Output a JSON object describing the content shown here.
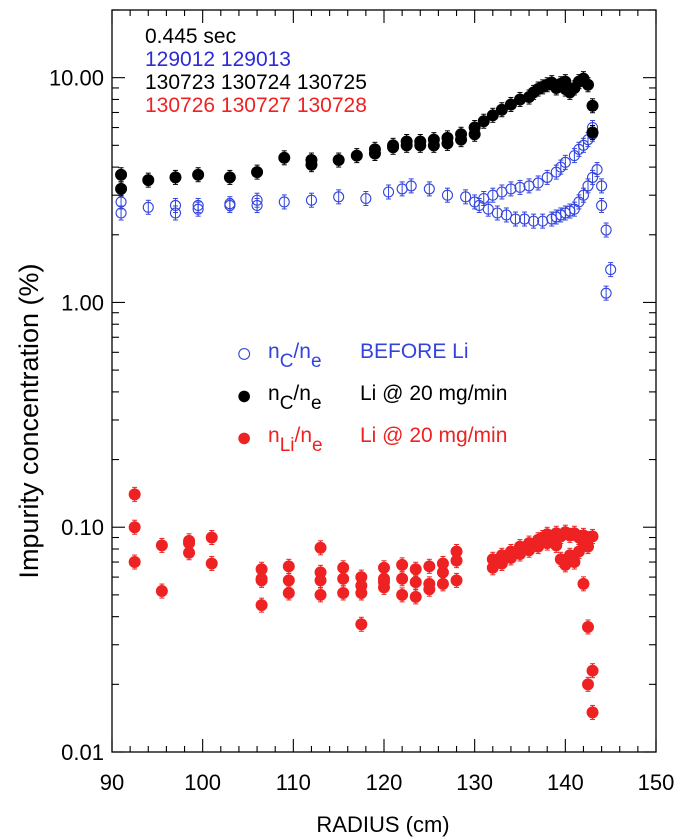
{
  "chart_data": {
    "type": "scatter",
    "xlabel": "RADIUS (cm)",
    "ylabel": "Impurity concentration (%)",
    "xlim": [
      90,
      150
    ],
    "ylim": [
      0.01,
      20
    ],
    "y_scale": "log",
    "x_ticks": [
      90,
      100,
      110,
      120,
      130,
      140,
      150
    ],
    "y_ticks": [
      {
        "value": 0.01,
        "label": "0.01"
      },
      {
        "value": 0.1,
        "label": "0.10"
      },
      {
        "value": 1,
        "label": "1.00"
      },
      {
        "value": 10,
        "label": "10.00"
      }
    ],
    "annotations": [
      {
        "text": "0.445 sec",
        "color": "#000000"
      },
      {
        "text": "129012 129013",
        "color": "#2b2bd9"
      },
      {
        "text": "130723 130724 130725",
        "color": "#000000"
      },
      {
        "text": "130726 130727 130728",
        "color": "#ee2222"
      }
    ],
    "legend": {
      "placement": "center-left",
      "entries": [
        {
          "symbol": "○",
          "main": "n",
          "sub1": "C",
          "slash": "/n",
          "sub2": "e",
          "label": "BEFORE Li",
          "color": "#3344dd",
          "label_color": "#3344dd"
        },
        {
          "symbol": "●",
          "main": "n",
          "sub1": "C",
          "slash": "/n",
          "sub2": "e",
          "label": "Li @ 20 mg/min",
          "color": "#000000",
          "label_color": "#000000"
        },
        {
          "symbol": "●",
          "main": "n",
          "sub1": "Li",
          "slash": "/n",
          "sub2": "e",
          "label": "Li @ 20 mg/min",
          "color": "#ee2222",
          "label_color": "#ee2222"
        }
      ]
    },
    "series": [
      {
        "marker": "open-circle",
        "color": "#3344dd",
        "x": [
          91,
          91,
          94,
          97,
          97,
          99.5,
          99.5,
          103,
          103,
          106,
          106,
          109,
          112,
          115,
          118,
          120.5,
          122,
          123,
          125,
          127,
          129,
          130.5,
          131.5,
          132.5,
          133.5,
          134.5,
          135.5,
          136.5,
          137.5,
          138.5,
          139,
          139.5,
          140,
          140.5,
          141,
          141.5,
          142,
          142.5,
          143,
          143.5,
          143,
          144,
          144,
          144.5,
          145,
          144.5
        ],
        "y": [
          2.8,
          2.5,
          2.65,
          2.7,
          2.5,
          2.7,
          2.6,
          2.75,
          2.7,
          2.85,
          2.7,
          2.8,
          2.85,
          2.95,
          2.9,
          3.1,
          3.2,
          3.3,
          3.2,
          3.0,
          2.95,
          2.7,
          2.6,
          2.5,
          2.45,
          2.35,
          2.35,
          2.3,
          2.3,
          2.35,
          2.4,
          2.45,
          2.5,
          2.55,
          2.6,
          2.8,
          3.0,
          3.3,
          3.6,
          3.9,
          6.0,
          3.3,
          2.7,
          2.1,
          1.4,
          1.1
        ]
      },
      {
        "marker": "open-circle",
        "color": "#3344dd",
        "x": [
          130,
          131,
          132,
          133,
          134,
          135,
          136,
          137,
          138,
          139,
          139.5,
          140,
          141,
          141.5,
          142,
          142.5,
          143
        ],
        "y": [
          2.8,
          2.9,
          3.0,
          3.1,
          3.2,
          3.25,
          3.3,
          3.4,
          3.6,
          3.8,
          4.0,
          4.2,
          4.5,
          4.8,
          5.0,
          5.3,
          5.6
        ]
      },
      {
        "marker": "filled-circle",
        "color": "#000000",
        "x": [
          91,
          91,
          94,
          97,
          99.5,
          103,
          106,
          109,
          112,
          112,
          115,
          117,
          119,
          119,
          121,
          121,
          122.5,
          122.5,
          124,
          124,
          125.5,
          125.5,
          127,
          127,
          128.5,
          128.5,
          130,
          130,
          131,
          132,
          133,
          134,
          135,
          136,
          136.5,
          137,
          137.5,
          138,
          138.5,
          139,
          139.5,
          140,
          140,
          140.5,
          141,
          141.5,
          142,
          142.5,
          143,
          143
        ],
        "y": [
          3.7,
          3.2,
          3.5,
          3.6,
          3.7,
          3.6,
          3.8,
          4.4,
          4.1,
          4.3,
          4.3,
          4.5,
          4.6,
          4.8,
          4.9,
          5.0,
          5.0,
          5.2,
          5.0,
          5.2,
          5.0,
          5.3,
          5.1,
          5.4,
          5.3,
          5.6,
          5.6,
          6.0,
          6.4,
          6.8,
          7.2,
          7.6,
          8.0,
          8.2,
          8.6,
          8.9,
          9.1,
          9.3,
          9.5,
          9.0,
          9.4,
          9.6,
          8.9,
          8.6,
          9.0,
          9.6,
          9.9,
          9.3,
          7.5,
          5.7
        ]
      },
      {
        "marker": "filled-circle",
        "color": "#ee2222",
        "x": [
          92.5,
          92.5,
          92.5,
          95.5,
          95.5,
          98.5,
          98.5,
          98.5,
          101,
          101,
          106.5,
          106.5,
          106.5,
          106.5,
          109.5,
          109.5,
          109.5,
          113,
          113,
          113,
          113,
          115.5,
          115.5,
          115.5,
          117.5,
          117.5,
          117.5,
          117.5,
          120,
          120,
          120,
          120,
          122,
          122,
          122,
          123.5,
          123.5,
          123.5,
          125,
          125,
          125,
          126.5,
          126.5,
          126.5,
          128,
          128,
          128,
          132,
          132,
          133,
          133,
          134,
          134,
          135,
          135,
          136,
          136,
          137,
          137,
          137.5,
          138,
          138,
          138.5,
          139,
          139,
          139.5,
          139.5,
          140,
          140,
          140.5,
          140.5,
          141,
          141,
          141.5,
          141.5,
          142,
          142,
          142.5,
          142.5,
          143,
          142,
          142.5,
          142.5,
          143,
          143
        ],
        "y": [
          0.14,
          0.1,
          0.07,
          0.083,
          0.052,
          0.085,
          0.077,
          0.087,
          0.09,
          0.069,
          0.065,
          0.058,
          0.045,
          0.059,
          0.067,
          0.058,
          0.051,
          0.081,
          0.063,
          0.058,
          0.05,
          0.066,
          0.059,
          0.051,
          0.06,
          0.055,
          0.051,
          0.037,
          0.066,
          0.059,
          0.054,
          0.057,
          0.068,
          0.059,
          0.05,
          0.065,
          0.057,
          0.049,
          0.067,
          0.056,
          0.053,
          0.069,
          0.063,
          0.056,
          0.078,
          0.071,
          0.058,
          0.072,
          0.066,
          0.075,
          0.069,
          0.078,
          0.073,
          0.082,
          0.076,
          0.085,
          0.079,
          0.088,
          0.082,
          0.09,
          0.093,
          0.085,
          0.088,
          0.094,
          0.083,
          0.091,
          0.072,
          0.095,
          0.068,
          0.092,
          0.075,
          0.094,
          0.07,
          0.09,
          0.078,
          0.092,
          0.085,
          0.089,
          0.082,
          0.091,
          0.056,
          0.036,
          0.02,
          0.023,
          0.015
        ]
      }
    ]
  }
}
